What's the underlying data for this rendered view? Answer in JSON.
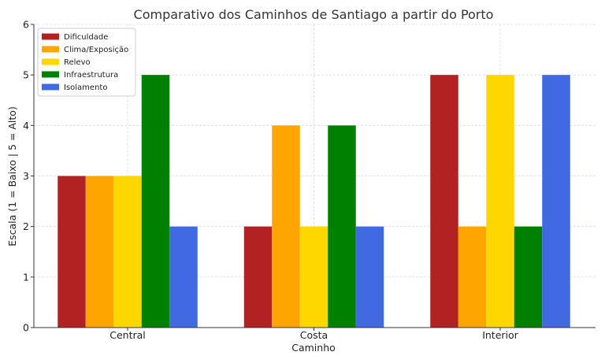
{
  "chart_data": {
    "type": "bar",
    "title": "Comparativo dos Caminhos de Santiago a partir do Porto",
    "xlabel": "Caminho",
    "ylabel": "Escala (1 = Baixo | 5 = Alto)",
    "categories": [
      "Central",
      "Costa",
      "Interior"
    ],
    "ylim": [
      0,
      6
    ],
    "yticks": [
      0,
      1,
      2,
      3,
      4,
      5,
      6
    ],
    "grid": true,
    "legend_position": "top-left",
    "series": [
      {
        "name": "Dificuldade",
        "color": "#b22222",
        "values": [
          3,
          2,
          5
        ]
      },
      {
        "name": "Clima/Exposição",
        "color": "#ffa500",
        "values": [
          3,
          4,
          2
        ]
      },
      {
        "name": "Relevo",
        "color": "#ffd700",
        "values": [
          3,
          2,
          5
        ]
      },
      {
        "name": "Infraestrutura",
        "color": "#008000",
        "values": [
          5,
          4,
          2
        ]
      },
      {
        "name": "Isolamento",
        "color": "#4169e1",
        "values": [
          2,
          2,
          5
        ]
      }
    ]
  }
}
